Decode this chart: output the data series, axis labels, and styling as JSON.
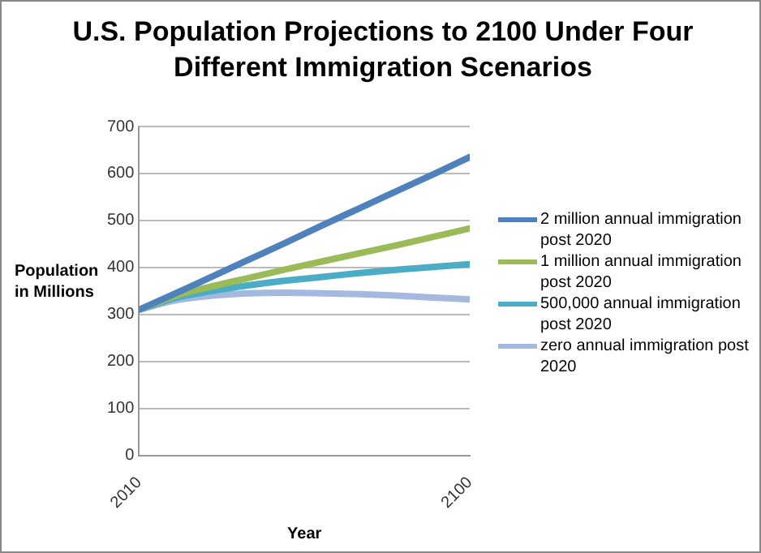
{
  "chart_data": {
    "type": "line",
    "title": "U.S. Population Projections to 2100 Under Four Different Immigration Scenarios",
    "xlabel": "Year",
    "ylabel": "Population in Millions",
    "x": [
      2010,
      2020,
      2030,
      2040,
      2050,
      2060,
      2070,
      2080,
      2090,
      2100
    ],
    "series": [
      {
        "name": "2 million annual immigration post 2020",
        "color": "#4f81bd",
        "values": [
          310,
          345,
          381,
          417,
          453,
          490,
          526,
          562,
          598,
          635
        ]
      },
      {
        "name": "1 million annual immigration post 2020",
        "color": "#9bbb59",
        "values": [
          310,
          340,
          360,
          378,
          396,
          413,
          430,
          447,
          465,
          483
        ]
      },
      {
        "name": " 500,000 annual immigration post 2020",
        "color": "#4bacc6",
        "values": [
          310,
          335,
          350,
          362,
          372,
          380,
          388,
          395,
          401,
          407
        ]
      },
      {
        "name": "zero  annual immigration post 2020",
        "color": "#a5b9e0",
        "values": [
          310,
          330,
          340,
          345,
          346,
          345,
          343,
          340,
          336,
          332
        ]
      }
    ],
    "xlim": [
      2010,
      2100
    ],
    "xticks": [
      2010,
      2100
    ],
    "ylim": [
      0,
      700
    ],
    "yticks": [
      0,
      100,
      200,
      300,
      400,
      500,
      600,
      700
    ],
    "grid": "y",
    "legend": "right",
    "marker": "none",
    "line_style": "solid"
  }
}
